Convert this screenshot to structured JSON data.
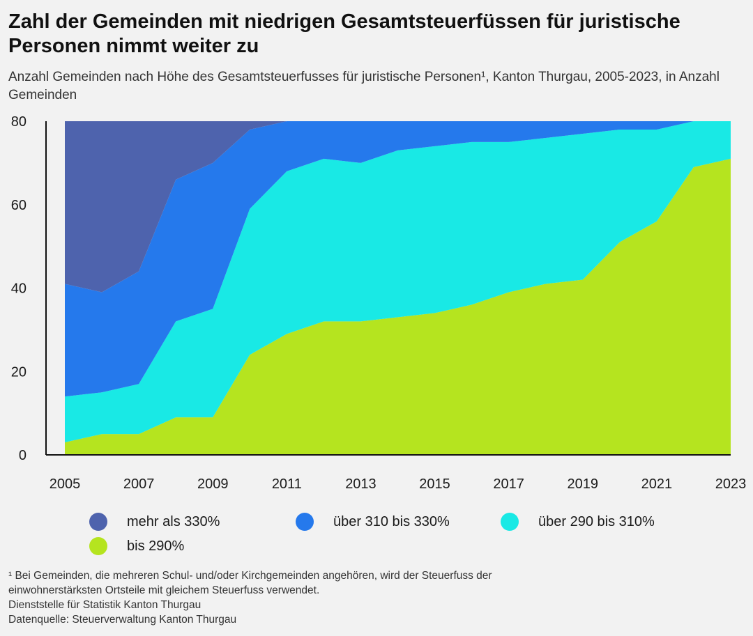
{
  "title": "Zahl der Gemeinden mit niedrigen Gesamtsteuerfüssen für juristische Personen nimmt weiter zu",
  "subtitle": "Anzahl Gemeinden nach Höhe des Gesamtsteuerfusses für juristische Personen¹, Kanton Thurgau, 2005-2023, in Anzahl Gemeinden",
  "footnote": {
    "line1": "¹ Bei Gemeinden, die mehreren Schul- und/oder Kirchgemeinden angehören, wird der Steuerfuss der",
    "line2": "einwohnerstärksten Ortsteile mit gleichem Steuerfuss verwendet.",
    "line3": "Dienststelle für Statistik Kanton Thurgau",
    "line4": "Datenquelle: Steuerverwaltung Kanton Thurgau"
  },
  "chart_data": {
    "type": "area",
    "stacked": true,
    "x": [
      2005,
      2006,
      2007,
      2008,
      2009,
      2010,
      2011,
      2012,
      2013,
      2014,
      2015,
      2016,
      2017,
      2018,
      2019,
      2020,
      2021,
      2022,
      2023
    ],
    "xticks": [
      "2005",
      "2007",
      "2009",
      "2011",
      "2013",
      "2015",
      "2017",
      "2019",
      "2021",
      "2023"
    ],
    "yticks": [
      "0",
      "20",
      "40",
      "60",
      "80"
    ],
    "ylim": [
      0,
      80
    ],
    "grid": false,
    "legend_position": "bottom",
    "series": [
      {
        "name": "bis 290%",
        "color": "#b5e41f",
        "values": [
          3,
          5,
          5,
          9,
          9,
          24,
          29,
          32,
          32,
          33,
          34,
          36,
          39,
          41,
          42,
          51,
          56,
          69,
          71
        ]
      },
      {
        "name": "über 290 bis 310%",
        "color": "#19e9e5",
        "values": [
          11,
          10,
          12,
          23,
          26,
          35,
          39,
          39,
          38,
          40,
          40,
          39,
          36,
          35,
          35,
          27,
          22,
          11,
          9
        ]
      },
      {
        "name": "über 310 bis 330%",
        "color": "#2579ec",
        "values": [
          27,
          24,
          27,
          34,
          35,
          19,
          12,
          9,
          10,
          7,
          6,
          5,
          5,
          4,
          3,
          2,
          2,
          0,
          0
        ]
      },
      {
        "name": "mehr als 330%",
        "color": "#4e63ad",
        "values": [
          39,
          41,
          36,
          14,
          10,
          2,
          0,
          0,
          0,
          0,
          0,
          0,
          0,
          0,
          0,
          0,
          0,
          0,
          0
        ]
      }
    ]
  }
}
